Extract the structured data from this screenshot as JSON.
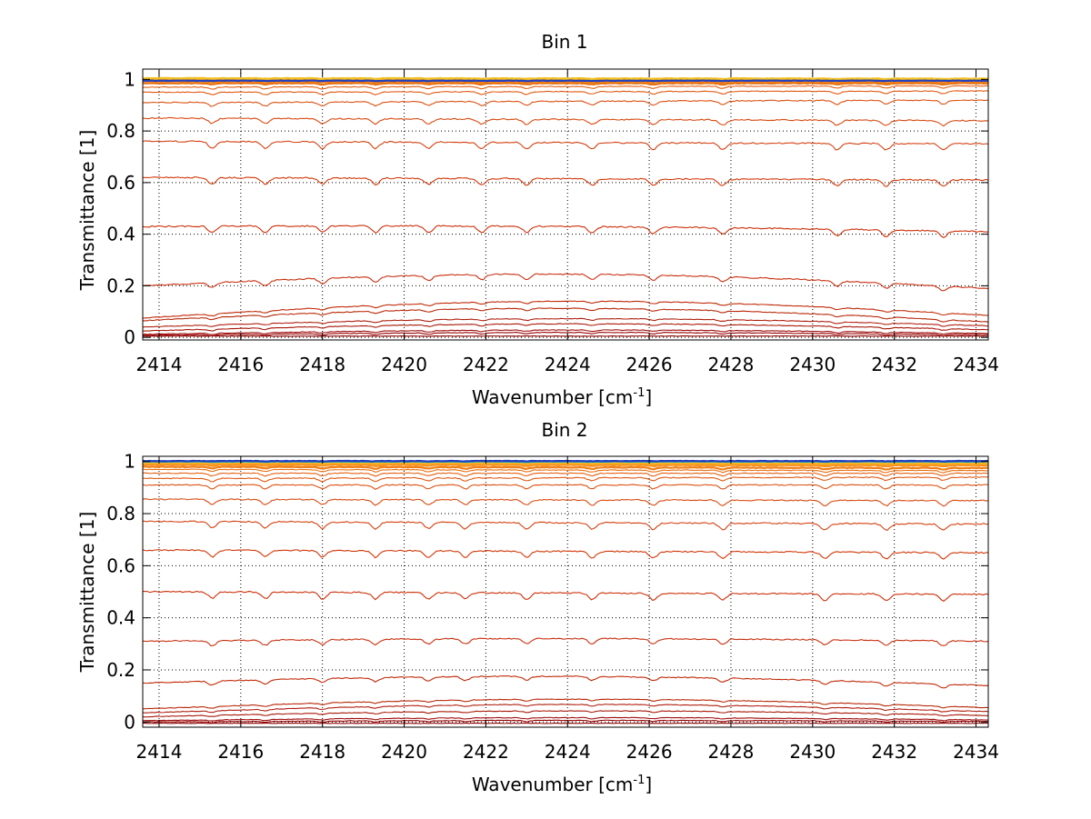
{
  "chart_data": [
    {
      "type": "line",
      "title": "Bin 1",
      "xlabel_main": "Wavenumber [cm",
      "xlabel_sup": "-1",
      "xlabel_close": "]",
      "ylabel": "Transmittance [1]",
      "xlim": [
        2413.6,
        2434.3
      ],
      "ylim": [
        -0.01,
        1.04
      ],
      "grid": true,
      "x_ticks": [
        2414,
        2416,
        2418,
        2420,
        2422,
        2424,
        2426,
        2428,
        2430,
        2432,
        2434
      ],
      "y_ticks": [
        0,
        0.2,
        0.4,
        0.6,
        0.8,
        1
      ],
      "x_tick_labels": [
        "2414",
        "2416",
        "2418",
        "2420",
        "2422",
        "2424",
        "2426",
        "2428",
        "2430",
        "2432",
        "2434"
      ],
      "y_tick_labels": [
        "0",
        "0.2",
        "0.4",
        "0.6",
        "0.8",
        "1"
      ],
      "absorption_lines": [
        2415.3,
        2416.6,
        2418.0,
        2419.3,
        2420.6,
        2421.9,
        2423.0,
        2424.6,
        2426.1,
        2427.8,
        2430.6,
        2431.8,
        2433.2
      ],
      "series": [
        {
          "level_start": 0.005,
          "level_end": 0.005,
          "bulge": 0.0,
          "depth": 0.0,
          "color": "#8b0000"
        },
        {
          "level_start": 0.008,
          "level_end": 0.01,
          "bulge": 0.01,
          "depth": 0.005,
          "color": "#990000"
        },
        {
          "level_start": 0.012,
          "level_end": 0.015,
          "bulge": 0.015,
          "depth": 0.005,
          "color": "#a01010"
        },
        {
          "level_start": 0.025,
          "level_end": 0.03,
          "bulge": 0.025,
          "depth": 0.006,
          "color": "#a81808"
        },
        {
          "level_start": 0.04,
          "level_end": 0.045,
          "bulge": 0.03,
          "depth": 0.006,
          "color": "#b02010"
        },
        {
          "level_start": 0.065,
          "level_end": 0.06,
          "bulge": 0.05,
          "depth": 0.008,
          "color": "#b82808"
        },
        {
          "level_start": 0.075,
          "level_end": 0.085,
          "bulge": 0.06,
          "depth": 0.008,
          "color": "#c02a08"
        },
        {
          "level_start": 0.2,
          "level_end": 0.19,
          "bulge": 0.05,
          "depth": 0.02,
          "color": "#c83010"
        },
        {
          "level_start": 0.43,
          "level_end": 0.41,
          "bulge": 0.01,
          "depth": 0.025,
          "color": "#cc3008"
        },
        {
          "level_start": 0.62,
          "level_end": 0.61,
          "bulge": 0.0,
          "depth": 0.025,
          "color": "#d03808"
        },
        {
          "level_start": 0.76,
          "level_end": 0.75,
          "bulge": 0.0,
          "depth": 0.025,
          "color": "#d44010"
        },
        {
          "level_start": 0.85,
          "level_end": 0.84,
          "bulge": 0.0,
          "depth": 0.02,
          "color": "#d84a10"
        },
        {
          "level_start": 0.91,
          "level_end": 0.92,
          "bulge": 0.0,
          "depth": 0.015,
          "color": "#dc5010"
        },
        {
          "level_start": 0.95,
          "level_end": 0.955,
          "bulge": 0.0,
          "depth": 0.01,
          "color": "#e05810"
        },
        {
          "level_start": 0.97,
          "level_end": 0.975,
          "bulge": 0.0,
          "depth": 0.008,
          "color": "#e46010"
        },
        {
          "level_start": 0.985,
          "level_end": 0.985,
          "bulge": 0.0,
          "depth": 0.005,
          "color": "#e87010"
        },
        {
          "level_start": 0.993,
          "level_end": 0.99,
          "bulge": 0.0,
          "depth": 0.004,
          "color": "#f08018"
        },
        {
          "level_start": 0.998,
          "level_end": 0.995,
          "bulge": 0.0,
          "depth": 0.003,
          "color": "#f89020"
        },
        {
          "level_start": 1.002,
          "level_end": 1.0,
          "bulge": 0.0,
          "depth": 0.002,
          "color": "#f8a020"
        },
        {
          "level_start": 1.005,
          "level_end": 1.003,
          "bulge": 0.0,
          "depth": 0.002,
          "color": "#f0c020"
        },
        {
          "level_start": 0.995,
          "level_end": 0.995,
          "bulge": 0.0,
          "depth": 0.001,
          "color": "#2040c0"
        }
      ]
    },
    {
      "type": "line",
      "title": "Bin 2",
      "xlabel_main": "Wavenumber [cm",
      "xlabel_sup": "-1",
      "xlabel_close": "]",
      "ylabel": "Transmittance [1]",
      "xlim": [
        2413.6,
        2434.3
      ],
      "ylim": [
        -0.02,
        1.02
      ],
      "grid": true,
      "x_ticks": [
        2414,
        2416,
        2418,
        2420,
        2422,
        2424,
        2426,
        2428,
        2430,
        2432,
        2434
      ],
      "y_ticks": [
        0,
        0.2,
        0.4,
        0.6,
        0.8,
        1
      ],
      "x_tick_labels": [
        "2414",
        "2416",
        "2418",
        "2420",
        "2422",
        "2424",
        "2426",
        "2428",
        "2430",
        "2432",
        "2434"
      ],
      "y_tick_labels": [
        "0",
        "0.2",
        "0.4",
        "0.6",
        "0.8",
        "1"
      ],
      "absorption_lines": [
        2415.3,
        2416.6,
        2418.0,
        2419.3,
        2420.6,
        2421.5,
        2423.0,
        2424.6,
        2426.1,
        2427.8,
        2430.3,
        2431.8,
        2433.2
      ],
      "series": [
        {
          "level_start": -0.005,
          "level_end": -0.005,
          "bulge": 0.0,
          "depth": 0.0,
          "color": "#8b0000"
        },
        {
          "level_start": 0.0,
          "level_end": 0.002,
          "bulge": 0.005,
          "depth": 0.004,
          "color": "#990000"
        },
        {
          "level_start": 0.005,
          "level_end": 0.008,
          "bulge": 0.01,
          "depth": 0.004,
          "color": "#a01010"
        },
        {
          "level_start": 0.02,
          "level_end": 0.025,
          "bulge": 0.02,
          "depth": 0.005,
          "color": "#a81808"
        },
        {
          "level_start": 0.035,
          "level_end": 0.04,
          "bulge": 0.03,
          "depth": 0.006,
          "color": "#b02010"
        },
        {
          "level_start": 0.05,
          "level_end": 0.055,
          "bulge": 0.035,
          "depth": 0.006,
          "color": "#b82808"
        },
        {
          "level_start": 0.15,
          "level_end": 0.14,
          "bulge": 0.03,
          "depth": 0.015,
          "color": "#c02a08"
        },
        {
          "level_start": 0.31,
          "level_end": 0.31,
          "bulge": 0.01,
          "depth": 0.02,
          "color": "#c83010"
        },
        {
          "level_start": 0.5,
          "level_end": 0.49,
          "bulge": 0.0,
          "depth": 0.025,
          "color": "#cc3008"
        },
        {
          "level_start": 0.66,
          "level_end": 0.65,
          "bulge": 0.0,
          "depth": 0.025,
          "color": "#d03808"
        },
        {
          "level_start": 0.77,
          "level_end": 0.76,
          "bulge": 0.0,
          "depth": 0.025,
          "color": "#d44010"
        },
        {
          "level_start": 0.855,
          "level_end": 0.85,
          "bulge": 0.0,
          "depth": 0.02,
          "color": "#d84a10"
        },
        {
          "level_start": 0.91,
          "level_end": 0.91,
          "bulge": 0.0,
          "depth": 0.015,
          "color": "#dc5010"
        },
        {
          "level_start": 0.935,
          "level_end": 0.94,
          "bulge": 0.0,
          "depth": 0.012,
          "color": "#e05810"
        },
        {
          "level_start": 0.955,
          "level_end": 0.955,
          "bulge": 0.0,
          "depth": 0.01,
          "color": "#e46010"
        },
        {
          "level_start": 0.97,
          "level_end": 0.965,
          "bulge": 0.0,
          "depth": 0.008,
          "color": "#e87010"
        },
        {
          "level_start": 0.98,
          "level_end": 0.975,
          "bulge": 0.0,
          "depth": 0.006,
          "color": "#f08018"
        },
        {
          "level_start": 0.988,
          "level_end": 0.985,
          "bulge": 0.0,
          "depth": 0.004,
          "color": "#f89020"
        },
        {
          "level_start": 0.993,
          "level_end": 0.99,
          "bulge": 0.0,
          "depth": 0.003,
          "color": "#f8a020"
        },
        {
          "level_start": 0.997,
          "level_end": 0.995,
          "bulge": 0.0,
          "depth": 0.002,
          "color": "#f0c020"
        },
        {
          "level_start": 1.0,
          "level_end": 1.0,
          "bulge": 0.0,
          "depth": 0.001,
          "color": "#20a0d0"
        },
        {
          "level_start": 1.002,
          "level_end": 1.002,
          "bulge": 0.0,
          "depth": 0.001,
          "color": "#2040c0"
        }
      ]
    }
  ]
}
